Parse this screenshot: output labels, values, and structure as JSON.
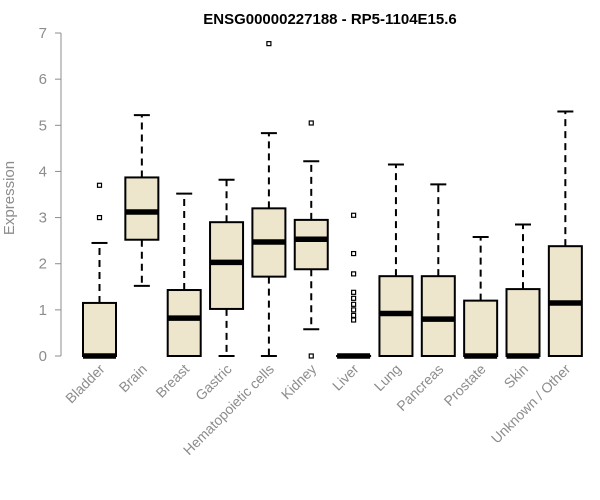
{
  "chart_data": {
    "type": "boxplot",
    "title": "ENSG00000227188 - RP5-1104E15.6",
    "xlabel": "",
    "ylabel": "Expression",
    "ylim": [
      0,
      7
    ],
    "yticks": [
      0,
      1,
      2,
      3,
      4,
      5,
      6,
      7
    ],
    "box_fill": "#ede6cc",
    "categories": [
      "Bladder",
      "Brain",
      "Breast",
      "Gastric",
      "Hematopoietic cells",
      "Kidney",
      "Liver",
      "Lung",
      "Pancreas",
      "Prostate",
      "Skin",
      "Unknown / Other"
    ],
    "series": [
      {
        "name": "Bladder",
        "whisker_low": 0,
        "q1": 0,
        "median": 0,
        "q3": 1.15,
        "whisker_high": 2.45,
        "outliers": [
          3.0,
          3.7
        ]
      },
      {
        "name": "Brain",
        "whisker_low": 1.52,
        "q1": 2.52,
        "median": 3.12,
        "q3": 3.87,
        "whisker_high": 5.22,
        "outliers": []
      },
      {
        "name": "Breast",
        "whisker_low": 0,
        "q1": 0,
        "median": 0.82,
        "q3": 1.43,
        "whisker_high": 3.52,
        "outliers": []
      },
      {
        "name": "Gastric",
        "whisker_low": 0,
        "q1": 1.02,
        "median": 2.03,
        "q3": 2.9,
        "whisker_high": 3.82,
        "outliers": []
      },
      {
        "name": "Hematopoietic cells",
        "whisker_low": 0,
        "q1": 1.72,
        "median": 2.47,
        "q3": 3.2,
        "whisker_high": 4.83,
        "outliers": [
          6.77
        ]
      },
      {
        "name": "Kidney",
        "whisker_low": 0.58,
        "q1": 1.88,
        "median": 2.53,
        "q3": 2.95,
        "whisker_high": 4.22,
        "outliers": [
          0,
          5.05
        ]
      },
      {
        "name": "Liver",
        "whisker_low": 0,
        "q1": 0,
        "median": 0,
        "q3": 0,
        "whisker_high": 0,
        "outliers": [
          0.78,
          0.88,
          1.0,
          1.12,
          1.25,
          1.38,
          1.78,
          2.22,
          3.05
        ]
      },
      {
        "name": "Lung",
        "whisker_low": 0,
        "q1": 0,
        "median": 0.92,
        "q3": 1.73,
        "whisker_high": 4.15,
        "outliers": []
      },
      {
        "name": "Pancreas",
        "whisker_low": 0,
        "q1": 0,
        "median": 0.8,
        "q3": 1.73,
        "whisker_high": 3.72,
        "outliers": []
      },
      {
        "name": "Prostate",
        "whisker_low": 0,
        "q1": 0,
        "median": 0,
        "q3": 1.2,
        "whisker_high": 2.58,
        "outliers": []
      },
      {
        "name": "Skin",
        "whisker_low": 0,
        "q1": 0,
        "median": 0,
        "q3": 1.45,
        "whisker_high": 2.85,
        "outliers": []
      },
      {
        "name": "Unknown / Other",
        "whisker_low": 0,
        "q1": 0,
        "median": 1.15,
        "q3": 2.38,
        "whisker_high": 5.3,
        "outliers": []
      }
    ]
  }
}
